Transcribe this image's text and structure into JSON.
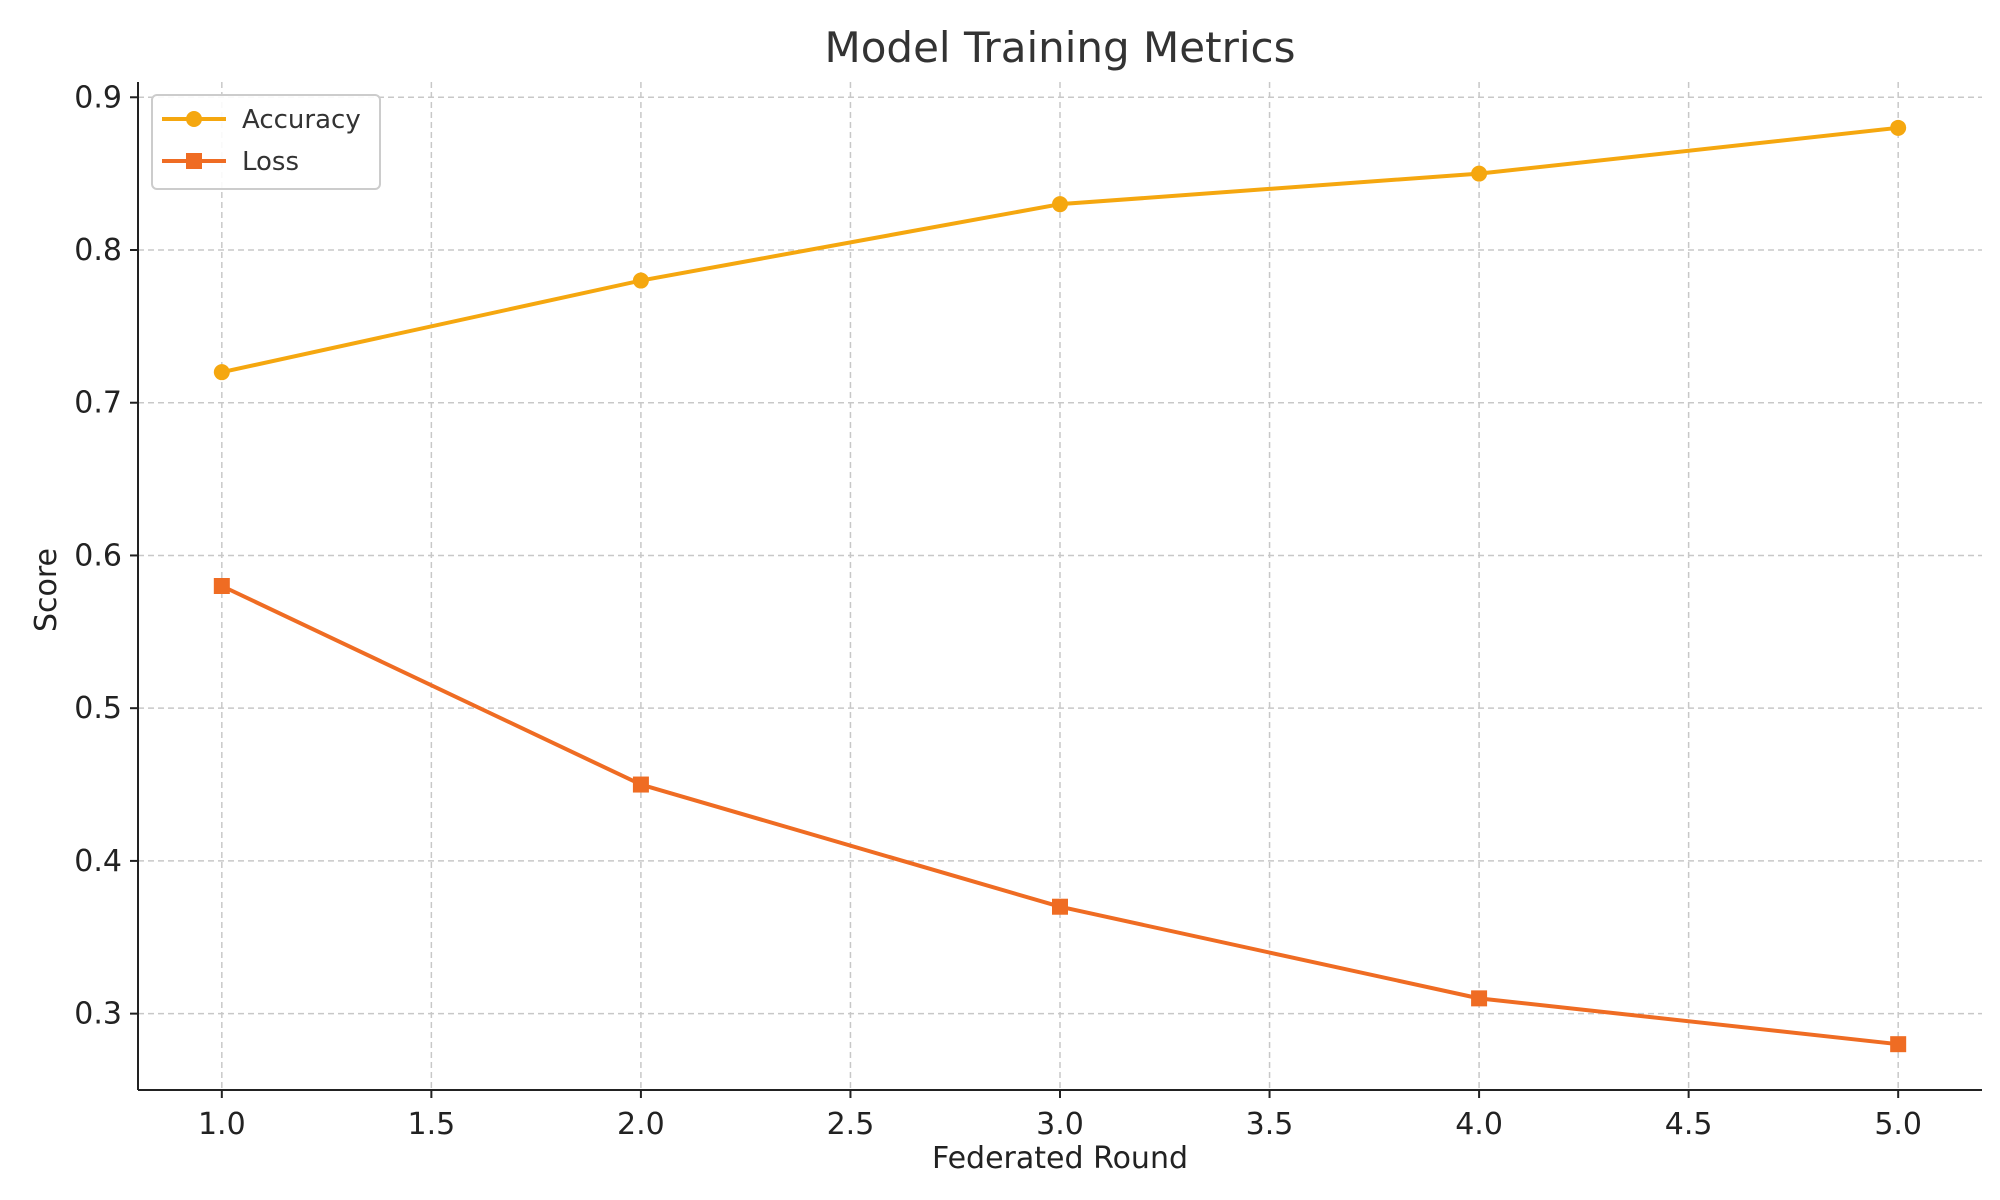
{
  "chart_data": {
    "type": "line",
    "title": "Model Training Metrics",
    "xlabel": "Federated Round",
    "ylabel": "Score",
    "x": [
      1.0,
      2.0,
      3.0,
      4.0,
      5.0
    ],
    "xlim": [
      0.8,
      5.2
    ],
    "ylim": [
      0.25,
      0.91
    ],
    "xticks": [
      1.0,
      1.5,
      2.0,
      2.5,
      3.0,
      3.5,
      4.0,
      4.5,
      5.0
    ],
    "xtick_labels": [
      "1.0",
      "1.5",
      "2.0",
      "2.5",
      "3.0",
      "3.5",
      "4.0",
      "4.5",
      "5.0"
    ],
    "yticks": [
      0.3,
      0.4,
      0.5,
      0.6,
      0.7,
      0.8,
      0.9
    ],
    "ytick_labels": [
      "0.3",
      "0.4",
      "0.5",
      "0.6",
      "0.7",
      "0.8",
      "0.9"
    ],
    "grid": true,
    "legend_position": "top-left",
    "series": [
      {
        "name": "Accuracy",
        "values": [
          0.72,
          0.78,
          0.83,
          0.85,
          0.88
        ],
        "color": "#f5a70f",
        "marker": "circle"
      },
      {
        "name": "Loss",
        "values": [
          0.58,
          0.45,
          0.37,
          0.31,
          0.28
        ],
        "color": "#ef6c23",
        "marker": "square"
      }
    ]
  }
}
